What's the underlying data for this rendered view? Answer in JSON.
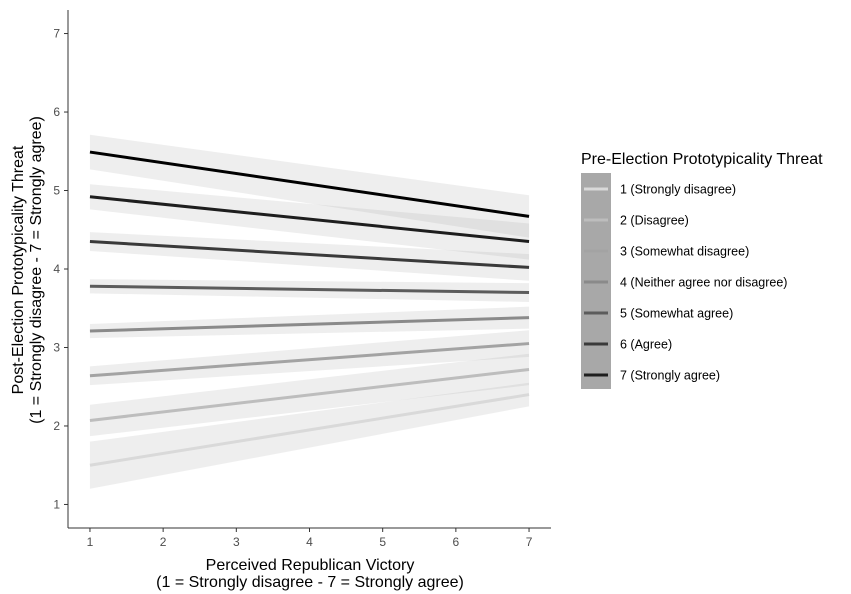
{
  "chart_data": {
    "type": "line",
    "xlabel": [
      "Perceived Republican Victory",
      "(1 = Strongly disagree - 7 = Strongly agree)"
    ],
    "ylabel": [
      "Post-Election Prototypicality Threat",
      "(1 = Strongly disagree - 7 = Strongly agree)"
    ],
    "xlim": [
      0.7,
      7.3
    ],
    "ylim": [
      0.7,
      7.3
    ],
    "x_ticks": [
      1,
      2,
      3,
      4,
      5,
      6,
      7
    ],
    "y_ticks": [
      1,
      2,
      3,
      4,
      5,
      6,
      7
    ],
    "grid": false,
    "confidence_bands": true,
    "legend": {
      "title": "Pre-Election Prototypicality Threat",
      "position": "right"
    },
    "series": [
      {
        "name": "1 (Strongly disagree)",
        "color": "#d9d9d9",
        "x": [
          1,
          7
        ],
        "y": [
          1.5,
          2.4
        ],
        "ci_low": [
          1.2,
          2.25
        ],
        "ci_high": [
          1.8,
          2.55
        ]
      },
      {
        "name": "2 (Disagree)",
        "color": "#bdbdbd",
        "x": [
          1,
          7
        ],
        "y": [
          2.07,
          2.72
        ],
        "ci_low": [
          1.87,
          2.52
        ],
        "ci_high": [
          2.27,
          2.92
        ]
      },
      {
        "name": "3 (Somewhat disagree)",
        "color": "#a3a3a3",
        "x": [
          1,
          7
        ],
        "y": [
          2.64,
          3.05
        ],
        "ci_low": [
          2.52,
          2.88
        ],
        "ci_high": [
          2.76,
          3.22
        ]
      },
      {
        "name": "4 (Neither agree nor disagree)",
        "color": "#8a8a8a",
        "x": [
          1,
          7
        ],
        "y": [
          3.21,
          3.38
        ],
        "ci_low": [
          3.12,
          3.24
        ],
        "ci_high": [
          3.3,
          3.52
        ]
      },
      {
        "name": "5 (Somewhat agree)",
        "color": "#5c5c5c",
        "x": [
          1,
          7
        ],
        "y": [
          3.78,
          3.7
        ],
        "ci_low": [
          3.69,
          3.58
        ],
        "ci_high": [
          3.87,
          3.82
        ]
      },
      {
        "name": "6 (Agree)",
        "color": "#3a3a3a",
        "x": [
          1,
          7
        ],
        "y": [
          4.35,
          4.02
        ],
        "ci_low": [
          4.23,
          3.85
        ],
        "ci_high": [
          4.47,
          4.19
        ]
      },
      {
        "name": "7 (Strongly agree)",
        "color": "#1e1e1e",
        "x": [
          1,
          7
        ],
        "y": [
          4.92,
          4.35
        ],
        "ci_low": [
          4.76,
          4.12
        ],
        "ci_high": [
          5.08,
          4.58
        ]
      },
      {
        "name": "",
        "color": "#000000",
        "x": [
          1,
          7
        ],
        "y": [
          5.49,
          4.67
        ],
        "ci_low": [
          5.27,
          4.4
        ],
        "ci_high": [
          5.71,
          4.94
        ]
      }
    ]
  }
}
